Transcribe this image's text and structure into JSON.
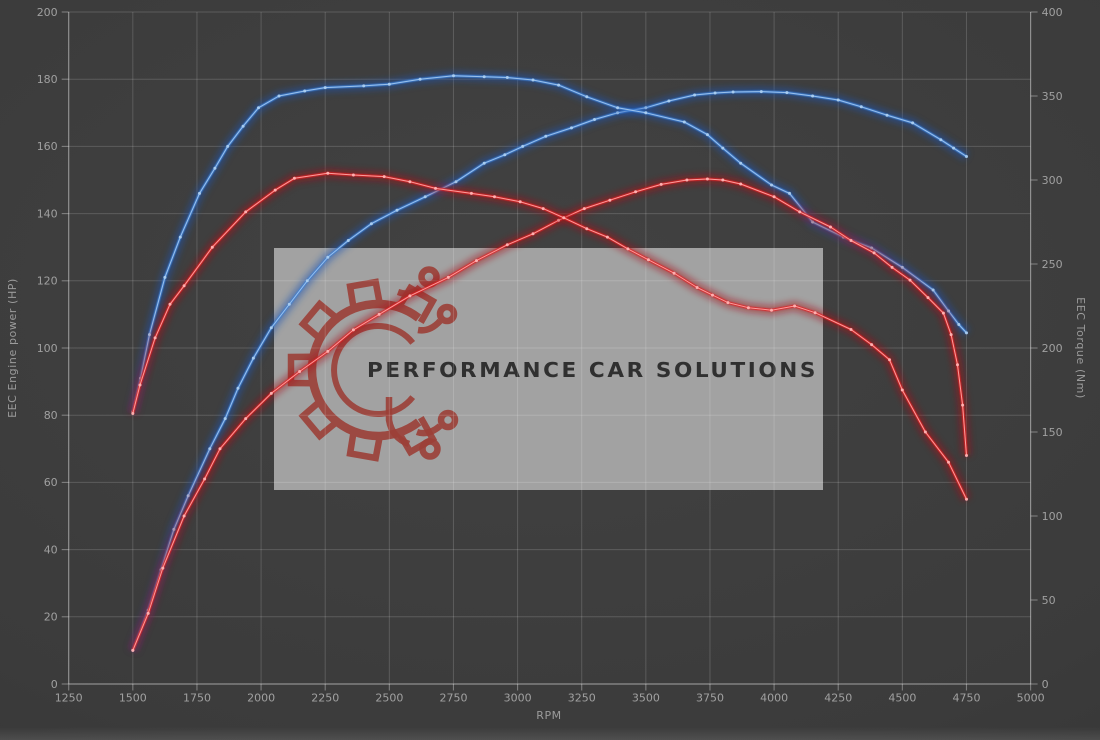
{
  "watermark": {
    "text": "PERFORMANCE CAR SOLUTIONS"
  },
  "colors": {
    "background": "#3b3b3b",
    "grid": "rgba(255,255,255,0.16)",
    "spine": "rgba(255,255,255,0.34)",
    "axis_text": "#a0a0a0",
    "blue": "#3d7fd4",
    "blue_core": "#aacdf0",
    "blue_glow": "#1d55b4",
    "red": "#e02424",
    "red_core": "#ffb2b2",
    "red_glow": "#a81016",
    "watermark_box": "#a8a8a8",
    "watermark_text": "#303030",
    "watermark_logo": "#9c4038"
  },
  "chart_data": {
    "type": "line",
    "title": "",
    "xlabel": "RPM",
    "ylabel_left": "EEC Engine power (HP)",
    "ylabel_right": "EEC Torque (Nm)",
    "xlim": [
      1250,
      5000
    ],
    "ylim_left": [
      0,
      200
    ],
    "ylim_right": [
      0,
      400
    ],
    "x_ticks": [
      1250,
      1500,
      1750,
      2000,
      2250,
      2500,
      2750,
      3000,
      3250,
      3500,
      3750,
      4000,
      4250,
      4500,
      4750,
      5000
    ],
    "y_ticks_left": [
      0,
      20,
      40,
      60,
      80,
      100,
      120,
      140,
      160,
      180,
      200
    ],
    "y_ticks_right": [
      0,
      50,
      100,
      150,
      200,
      250,
      300,
      350,
      400
    ],
    "grid": true,
    "legend": false,
    "series": [
      {
        "id": "power-blue",
        "axis": "left",
        "unit": "HP",
        "color_key": "blue",
        "points": [
          [
            1500,
            10
          ],
          [
            1560,
            22
          ],
          [
            1610,
            34
          ],
          [
            1660,
            46
          ],
          [
            1716,
            56
          ],
          [
            1800,
            70
          ],
          [
            1860,
            79
          ],
          [
            1910,
            88
          ],
          [
            1970,
            97
          ],
          [
            2040,
            106
          ],
          [
            2110,
            113
          ],
          [
            2180,
            120
          ],
          [
            2260,
            127
          ],
          [
            2340,
            132
          ],
          [
            2430,
            137
          ],
          [
            2530,
            141
          ],
          [
            2640,
            145
          ],
          [
            2760,
            149.5
          ],
          [
            2870,
            155
          ],
          [
            2950,
            157.5
          ],
          [
            3020,
            160
          ],
          [
            3110,
            163
          ],
          [
            3210,
            165.5
          ],
          [
            3300,
            168
          ],
          [
            3390,
            170
          ],
          [
            3500,
            171.5
          ],
          [
            3590,
            173.5
          ],
          [
            3690,
            175.3
          ],
          [
            3770,
            175.9
          ],
          [
            3840,
            176.2
          ],
          [
            3950,
            176.3
          ],
          [
            4050,
            176
          ],
          [
            4150,
            175
          ],
          [
            4250,
            173.8
          ],
          [
            4340,
            171.8
          ],
          [
            4440,
            169.3
          ],
          [
            4540,
            167
          ],
          [
            4650,
            162
          ],
          [
            4700,
            159.5
          ],
          [
            4750,
            157
          ]
        ]
      },
      {
        "id": "torque-blue",
        "axis": "right",
        "unit": "Nm",
        "color_key": "blue",
        "points": [
          [
            1500,
            162
          ],
          [
            1530,
            182
          ],
          [
            1565,
            208
          ],
          [
            1625,
            242
          ],
          [
            1685,
            266
          ],
          [
            1760,
            292
          ],
          [
            1820,
            307
          ],
          [
            1870,
            320
          ],
          [
            1930,
            332
          ],
          [
            1990,
            343
          ],
          [
            2070,
            350
          ],
          [
            2170,
            353
          ],
          [
            2250,
            355
          ],
          [
            2400,
            356
          ],
          [
            2500,
            357
          ],
          [
            2620,
            360
          ],
          [
            2750,
            362
          ],
          [
            2870,
            361.5
          ],
          [
            2960,
            361
          ],
          [
            3060,
            359.5
          ],
          [
            3160,
            356.5
          ],
          [
            3270,
            349.5
          ],
          [
            3390,
            343
          ],
          [
            3500,
            340
          ],
          [
            3650,
            334.5
          ],
          [
            3740,
            327
          ],
          [
            3800,
            319
          ],
          [
            3870,
            310
          ],
          [
            3990,
            297
          ],
          [
            4060,
            292
          ],
          [
            4150,
            275
          ],
          [
            4270,
            266
          ],
          [
            4380,
            259.5
          ],
          [
            4500,
            248
          ],
          [
            4620,
            234.5
          ],
          [
            4680,
            222
          ],
          [
            4720,
            214
          ],
          [
            4750,
            209
          ]
        ]
      },
      {
        "id": "power-red",
        "axis": "left",
        "unit": "HP",
        "color_key": "red",
        "points": [
          [
            1500,
            10
          ],
          [
            1560,
            21
          ],
          [
            1617,
            34.5
          ],
          [
            1700,
            50
          ],
          [
            1780,
            61
          ],
          [
            1840,
            70
          ],
          [
            1940,
            79
          ],
          [
            2040,
            86.5
          ],
          [
            2150,
            93
          ],
          [
            2260,
            99
          ],
          [
            2360,
            105.4
          ],
          [
            2460,
            110
          ],
          [
            2580,
            115.5
          ],
          [
            2730,
            121
          ],
          [
            2840,
            126
          ],
          [
            2960,
            130.7
          ],
          [
            3060,
            134
          ],
          [
            3160,
            138
          ],
          [
            3260,
            141.5
          ],
          [
            3360,
            144
          ],
          [
            3460,
            146.5
          ],
          [
            3560,
            148.7
          ],
          [
            3660,
            150
          ],
          [
            3740,
            150.3
          ],
          [
            3800,
            150
          ],
          [
            3870,
            148.8
          ],
          [
            4000,
            145
          ],
          [
            4100,
            140.5
          ],
          [
            4220,
            136
          ],
          [
            4300,
            132
          ],
          [
            4390,
            128.3
          ],
          [
            4460,
            124
          ],
          [
            4530,
            120.2
          ],
          [
            4600,
            115
          ],
          [
            4660,
            110.4
          ],
          [
            4690,
            104
          ],
          [
            4715,
            95
          ],
          [
            4735,
            83
          ],
          [
            4750,
            68
          ]
        ]
      },
      {
        "id": "torque-red",
        "axis": "right",
        "unit": "Nm",
        "color_key": "red",
        "points": [
          [
            1500,
            161
          ],
          [
            1528,
            178
          ],
          [
            1587,
            206
          ],
          [
            1645,
            226
          ],
          [
            1700,
            237
          ],
          [
            1810,
            260
          ],
          [
            1940,
            281
          ],
          [
            2055,
            294
          ],
          [
            2130,
            301
          ],
          [
            2260,
            304
          ],
          [
            2360,
            303
          ],
          [
            2480,
            302
          ],
          [
            2580,
            299
          ],
          [
            2680,
            295
          ],
          [
            2820,
            292
          ],
          [
            2910,
            290
          ],
          [
            3010,
            287
          ],
          [
            3100,
            283
          ],
          [
            3180,
            277.5
          ],
          [
            3270,
            271
          ],
          [
            3350,
            266
          ],
          [
            3430,
            259
          ],
          [
            3510,
            252.5
          ],
          [
            3610,
            244.5
          ],
          [
            3700,
            236
          ],
          [
            3760,
            231.5
          ],
          [
            3820,
            227
          ],
          [
            3900,
            224
          ],
          [
            3990,
            222.5
          ],
          [
            4080,
            225
          ],
          [
            4160,
            221
          ],
          [
            4300,
            211
          ],
          [
            4380,
            202
          ],
          [
            4450,
            193
          ],
          [
            4500,
            175
          ],
          [
            4590,
            150
          ],
          [
            4680,
            132
          ],
          [
            4750,
            110
          ]
        ]
      }
    ]
  }
}
